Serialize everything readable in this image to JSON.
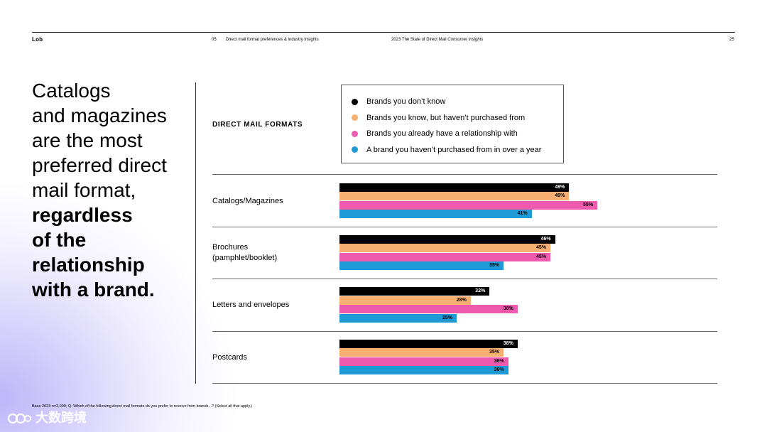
{
  "header": {
    "brand": "Lob",
    "section_number": "05",
    "section_title": "Direct mail format preferences & industry insights",
    "report_title": "2023 The State of Direct Mail",
    "report_subtitle": "Consumer Insights",
    "page_number": "25"
  },
  "headline": {
    "regular": [
      "Catalogs",
      "and magazines",
      "are the most",
      "preferred direct",
      "mail format,"
    ],
    "bold": [
      "regardless",
      "of the",
      "relationship",
      "with a brand."
    ]
  },
  "section_title": "DIRECT MAIL FORMATS",
  "colors": {
    "black": "#000000",
    "orange": "#F8AF71",
    "pink": "#EE5AAE",
    "blue": "#1E9AD6"
  },
  "chart_data": {
    "type": "bar",
    "orientation": "horizontal",
    "title": "DIRECT MAIL FORMATS",
    "categories": [
      "Catalogs/Magazines",
      "Brochures\n(pamphlet/booklet)",
      "Letters and envelopes",
      "Postcards"
    ],
    "series": [
      {
        "name": "Brands you don’t know",
        "color": "#000000",
        "values": [
          49,
          46,
          32,
          38
        ]
      },
      {
        "name": "Brands you know, but haven’t purchased from",
        "color": "#F8AF71",
        "values": [
          49,
          45,
          28,
          35
        ]
      },
      {
        "name": "Brands you already have a relationship with",
        "color": "#EE5AAE",
        "values": [
          55,
          45,
          38,
          36
        ]
      },
      {
        "name": "A brand you haven’t purchased from in over a year",
        "color": "#1E9AD6",
        "values": [
          41,
          35,
          25,
          36
        ]
      }
    ],
    "value_suffix": "%",
    "legend_position": "top-right"
  },
  "footnote": "Base 2023 n=2,000; Q: Which of the following direct mail formats do you prefer to receive from brands...? (Select all that apply.)",
  "watermark": {
    "text": "大数跨境"
  }
}
